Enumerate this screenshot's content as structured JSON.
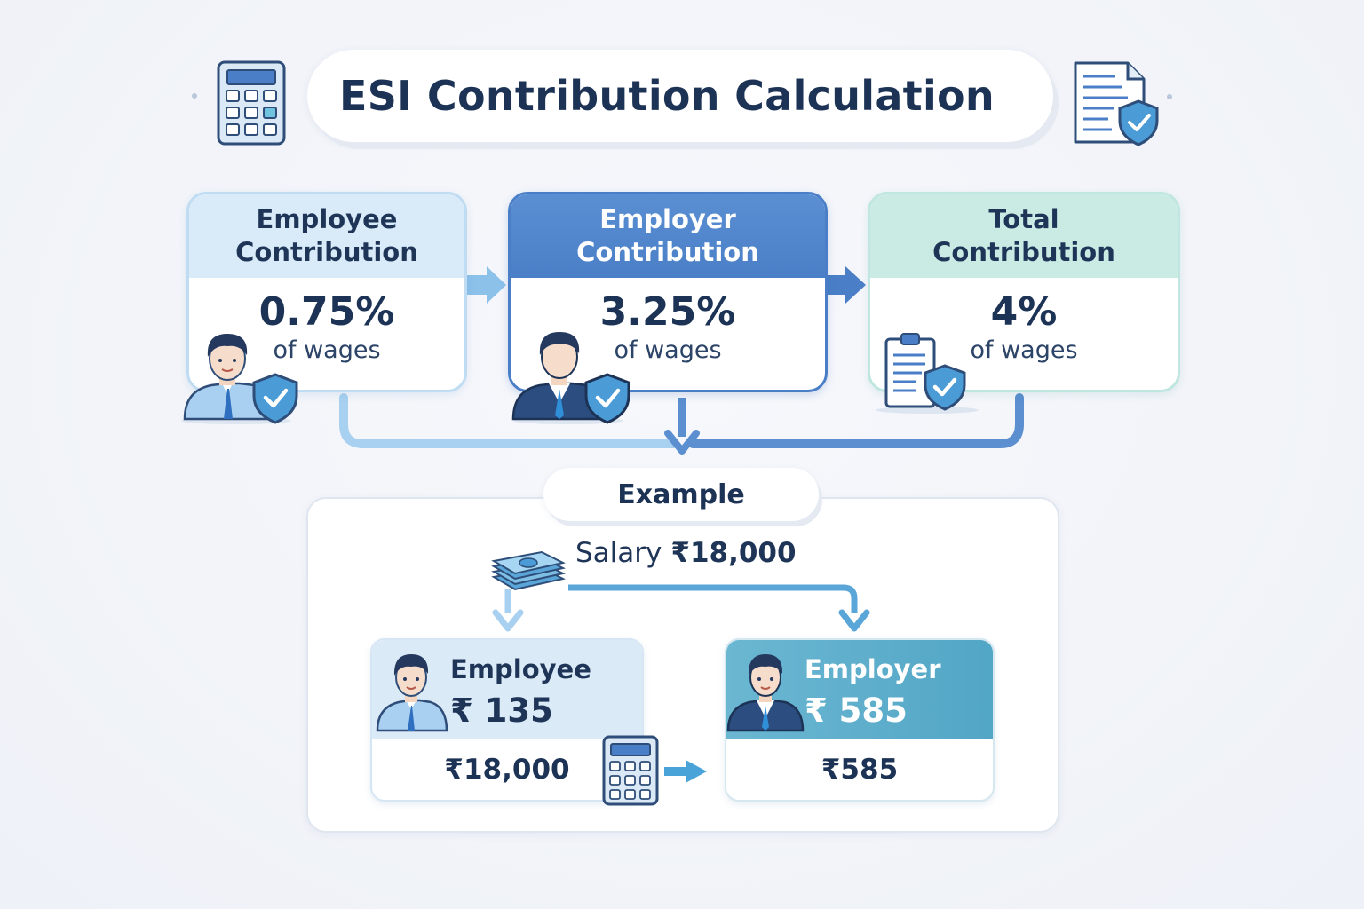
{
  "title": "ESI Contribution Calculation",
  "colors": {
    "employee": "#d9ebf8",
    "employer": "#4a7fc7",
    "total": "#c9ebe4",
    "text": "#1c3356"
  },
  "cards": [
    {
      "heading": "Employee Contribution",
      "line1": "Employee",
      "line2": "Contribution",
      "rate": "0.75%",
      "unit": "of wages",
      "icon": "employee-avatar-icon"
    },
    {
      "heading": "Employer Contribution",
      "line1": "Employer",
      "line2": "Contribution",
      "rate": "3.25%",
      "unit": "of wages",
      "icon": "employer-avatar-icon"
    },
    {
      "heading": "Total Contribution",
      "line1": "Total",
      "line2": "Contribution",
      "rate": "4%",
      "unit": "of wages",
      "icon": "clipboard-icon"
    }
  ],
  "example": {
    "label": "Example",
    "salary_label": "Salary",
    "salary_value": "₹18,000",
    "employee": {
      "label": "Employee",
      "amount": "₹ 135",
      "base": "₹18,000"
    },
    "employer": {
      "label": "Employer",
      "amount": "₹ 585",
      "result": "₹585"
    }
  },
  "icons": [
    "calculator-icon",
    "document-shield-icon",
    "shield-check-icon",
    "money-stack-icon",
    "arrow-right-icon",
    "arrow-down-icon"
  ]
}
